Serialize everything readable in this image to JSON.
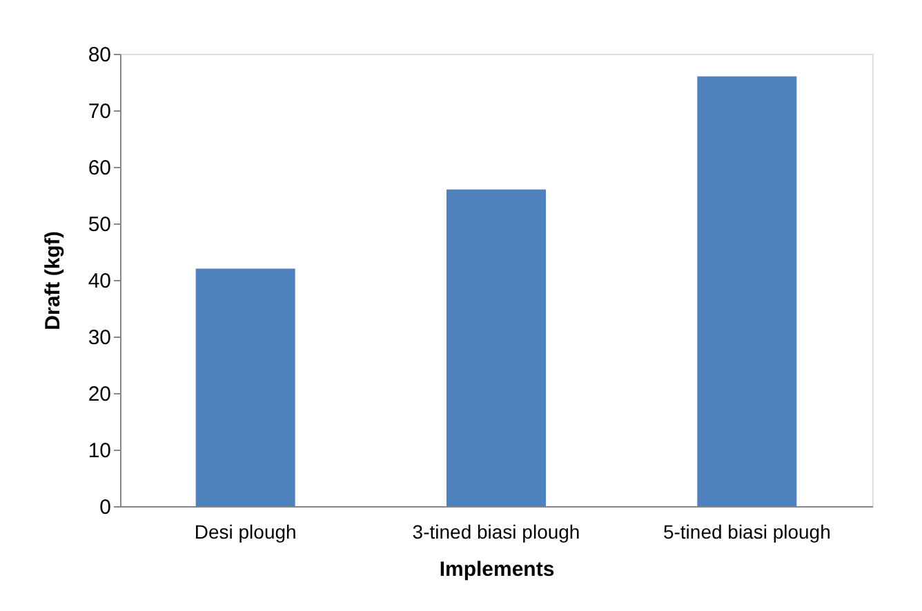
{
  "chart_data": {
    "type": "bar",
    "xlabel": "Implements",
    "ylabel": "Draft (kgf)",
    "categories": [
      "Desi plough",
      "3-tined biasi plough",
      "5-tined  biasi plough"
    ],
    "values": [
      42,
      56,
      76
    ],
    "color": "#4f81bd",
    "ylim": [
      0,
      80
    ],
    "yticks": [
      0,
      10,
      20,
      30,
      40,
      50,
      60,
      70,
      80
    ],
    "grid": false,
    "legend": false
  }
}
